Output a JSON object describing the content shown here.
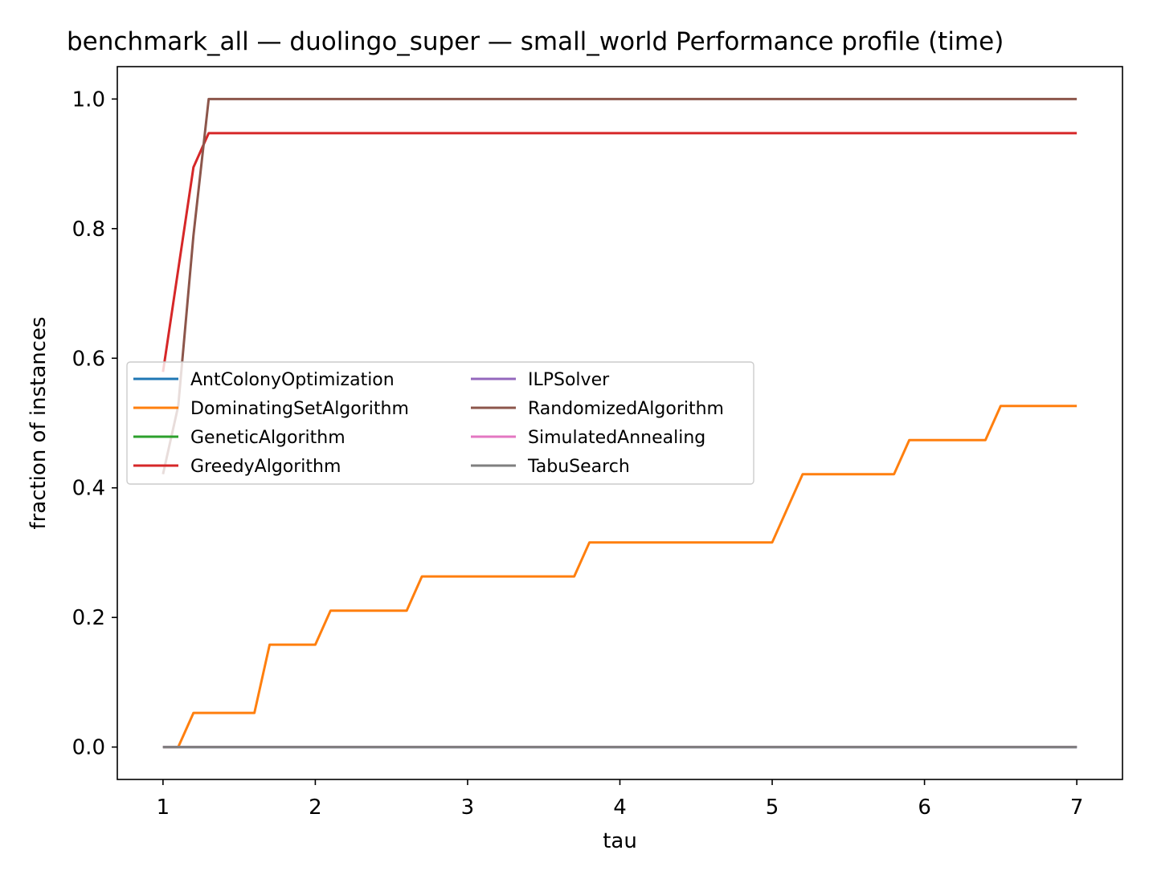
{
  "chart_data": {
    "type": "line",
    "title": "benchmark_all — duolingo_super — small_world Performance profile (time)",
    "xlabel": "tau",
    "ylabel": "fraction of instances",
    "xlim": [
      0.7,
      7.3
    ],
    "ylim": [
      -0.05,
      1.05
    ],
    "xticks": [
      1,
      2,
      3,
      4,
      5,
      6,
      7
    ],
    "yticks": [
      0.0,
      0.2,
      0.4,
      0.6,
      0.8,
      1.0
    ],
    "xtick_labels": [
      "1",
      "2",
      "3",
      "4",
      "5",
      "6",
      "7"
    ],
    "ytick_labels": [
      "0.0",
      "0.2",
      "0.4",
      "0.6",
      "0.8",
      "1.0"
    ],
    "grid": false,
    "legend_position": "center-left",
    "legend_columns": 2,
    "series": [
      {
        "name": "AntColonyOptimization",
        "color": "#1f77b4",
        "x": [
          1,
          7
        ],
        "y": [
          0.0,
          0.0
        ]
      },
      {
        "name": "DominatingSetAlgorithm",
        "color": "#ff7f0e",
        "x": [
          1,
          1.1,
          1.2,
          1.6,
          1.7,
          2.0,
          2.1,
          2.6,
          2.7,
          3.7,
          3.8,
          5.0,
          5.2,
          5.8,
          5.9,
          6.4,
          6.5,
          7.0
        ],
        "y": [
          0.0,
          0.0,
          0.0526,
          0.0526,
          0.1579,
          0.1579,
          0.2105,
          0.2105,
          0.2632,
          0.2632,
          0.3158,
          0.3158,
          0.4211,
          0.4211,
          0.4737,
          0.4737,
          0.5263,
          0.5263
        ]
      },
      {
        "name": "GeneticAlgorithm",
        "color": "#2ca02c",
        "x": [
          1,
          7
        ],
        "y": [
          0.0,
          0.0
        ]
      },
      {
        "name": "GreedyAlgorithm",
        "color": "#d62728",
        "x": [
          1,
          1.2,
          1.3,
          7.0
        ],
        "y": [
          0.5789,
          0.8947,
          0.9474,
          0.9474
        ]
      },
      {
        "name": "ILPSolver",
        "color": "#9467bd",
        "x": [
          1,
          7
        ],
        "y": [
          0.0,
          0.0
        ]
      },
      {
        "name": "RandomizedAlgorithm",
        "color": "#8c564b",
        "x": [
          1,
          1.1,
          1.2,
          1.3,
          7.0
        ],
        "y": [
          0.4211,
          0.5263,
          0.7895,
          1.0,
          1.0
        ]
      },
      {
        "name": "SimulatedAnnealing",
        "color": "#e377c2",
        "x": [
          1,
          7
        ],
        "y": [
          0.0,
          0.0
        ]
      },
      {
        "name": "TabuSearch",
        "color": "#7f7f7f",
        "x": [
          1,
          7
        ],
        "y": [
          0.0,
          0.0
        ]
      }
    ]
  }
}
